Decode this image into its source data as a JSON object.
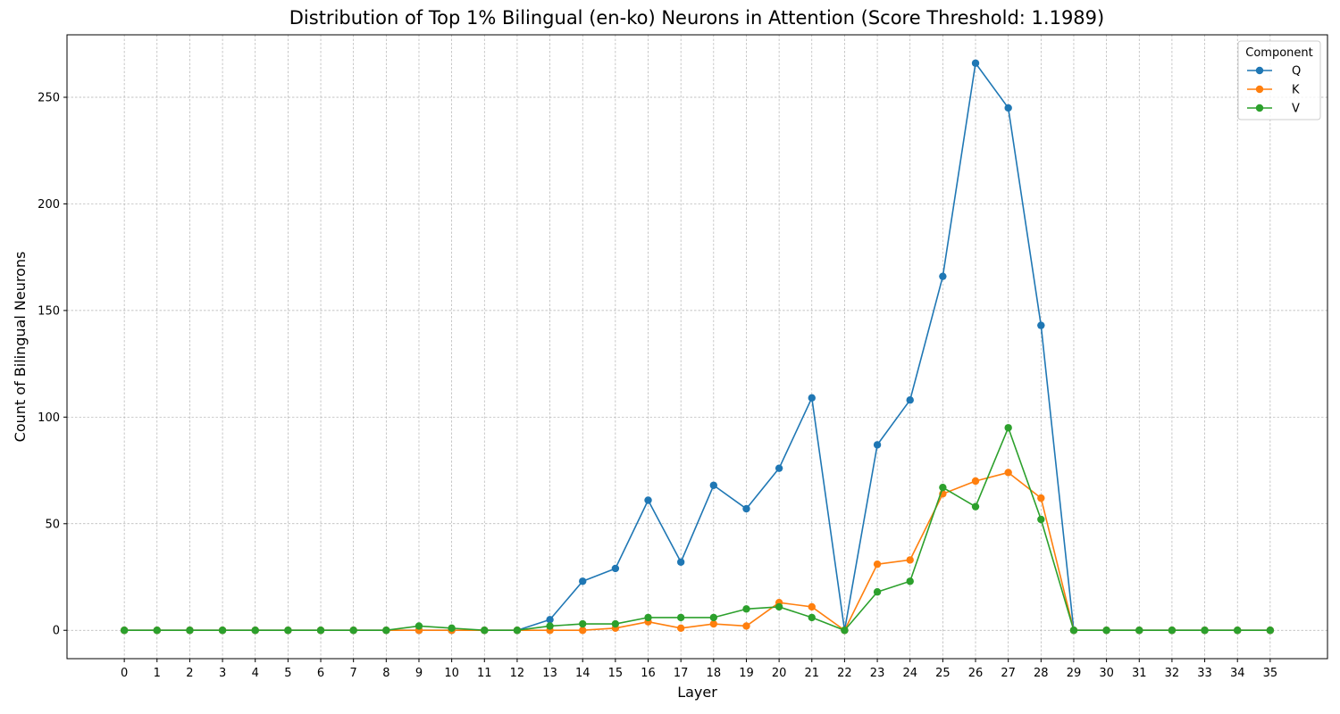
{
  "chart_data": {
    "type": "line",
    "title": "Distribution of Top 1% Bilingual (en-ko) Neurons in Attention (Score Threshold: 1.1989)",
    "xlabel": "Layer",
    "ylabel": "Count of Bilingual Neurons",
    "x": [
      0,
      1,
      2,
      3,
      4,
      5,
      6,
      7,
      8,
      9,
      10,
      11,
      12,
      13,
      14,
      15,
      16,
      17,
      18,
      19,
      20,
      21,
      22,
      23,
      24,
      25,
      26,
      27,
      28,
      29,
      30,
      31,
      32,
      33,
      34,
      35
    ],
    "xlim": [
      -1.75,
      36.75
    ],
    "ylim": [
      -13.3,
      279.3
    ],
    "yticks": [
      0,
      50,
      100,
      150,
      200,
      250
    ],
    "grid": true,
    "legend": {
      "title": "Component",
      "placement": "top-right"
    },
    "series": [
      {
        "name": "Q",
        "color": "#1f77b4",
        "values": [
          0,
          0,
          0,
          0,
          0,
          0,
          0,
          0,
          0,
          0,
          0,
          0,
          0,
          5,
          23,
          29,
          61,
          32,
          68,
          57,
          76,
          109,
          0,
          87,
          108,
          166,
          266,
          245,
          143,
          0,
          0,
          0,
          0,
          0,
          0,
          0
        ]
      },
      {
        "name": "K",
        "color": "#ff7f0e",
        "values": [
          0,
          0,
          0,
          0,
          0,
          0,
          0,
          0,
          0,
          0,
          0,
          0,
          0,
          0,
          0,
          1,
          4,
          1,
          3,
          2,
          13,
          11,
          0,
          31,
          33,
          64,
          70,
          74,
          62,
          0,
          0,
          0,
          0,
          0,
          0,
          0
        ]
      },
      {
        "name": "V",
        "color": "#2ca02c",
        "values": [
          0,
          0,
          0,
          0,
          0,
          0,
          0,
          0,
          0,
          2,
          1,
          0,
          0,
          2,
          3,
          3,
          6,
          6,
          6,
          10,
          11,
          6,
          0,
          18,
          23,
          67,
          58,
          95,
          52,
          0,
          0,
          0,
          0,
          0,
          0,
          0
        ]
      }
    ]
  }
}
